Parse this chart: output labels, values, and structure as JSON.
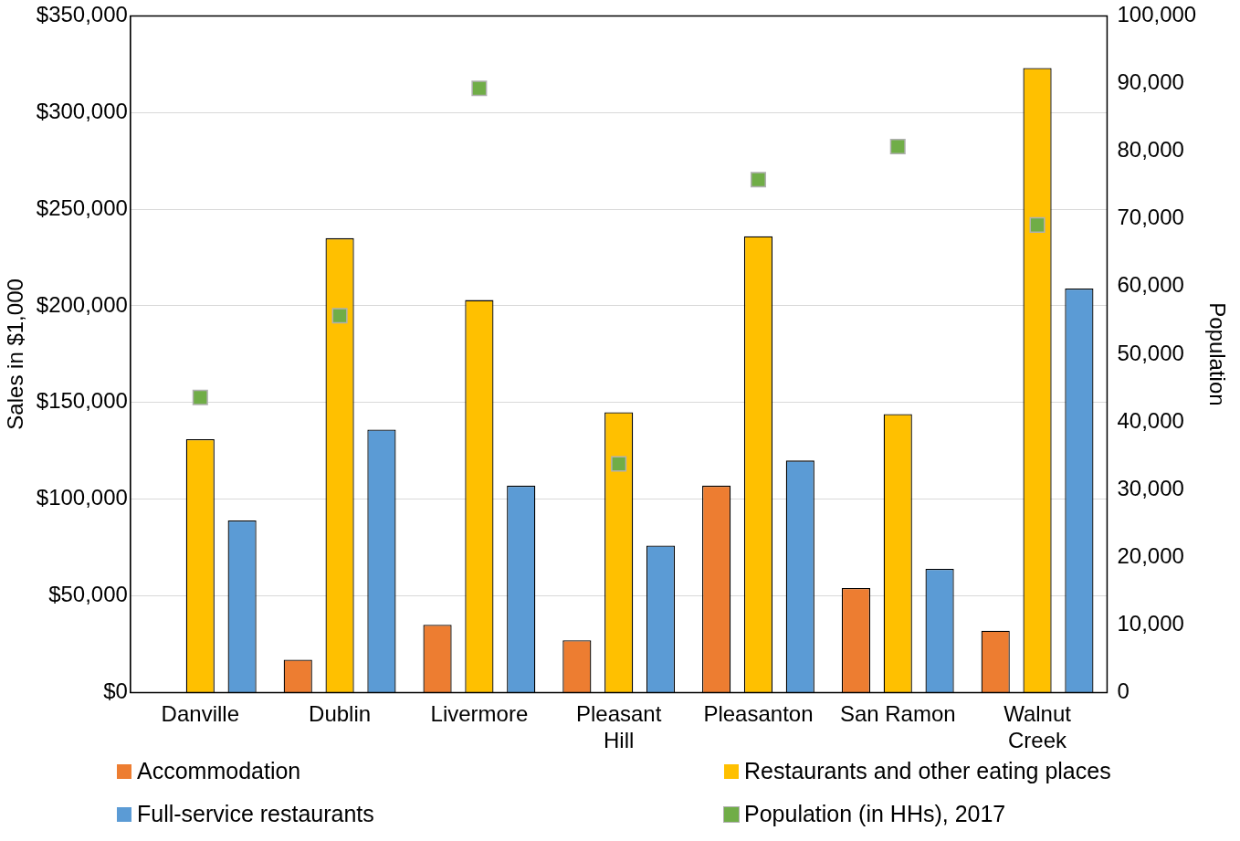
{
  "chart_data": {
    "type": "bar",
    "ylabel": "Sales in $1,000",
    "y2label": "Population",
    "categories": [
      "Danville",
      "Dublin",
      "Livermore",
      "Pleasant Hill",
      "Pleasanton",
      "San Ramon",
      "Walnut Creek"
    ],
    "series": [
      {
        "name": "Accommodation",
        "color": "#ed7d31",
        "values": [
          null,
          17000,
          35000,
          27000,
          107000,
          54000,
          32000
        ]
      },
      {
        "name": "Restaurants and other eating places",
        "color": "#ffc000",
        "values": [
          131000,
          235000,
          203000,
          145000,
          236000,
          144000,
          323000
        ]
      },
      {
        "name": "Full-service restaurants",
        "color": "#5b9bd5",
        "values": [
          89000,
          136000,
          107000,
          76000,
          120000,
          64000,
          209000
        ]
      },
      {
        "name": "Population (in HHs), 2017",
        "type": "scatter",
        "axis": "y2",
        "marker": "square",
        "color": "#70ad47",
        "values": [
          43600,
          55700,
          89300,
          33800,
          75800,
          80700,
          69100
        ]
      }
    ],
    "ylim": [
      0,
      350000
    ],
    "yticks": [
      {
        "value": 0,
        "label": "$0"
      },
      {
        "value": 50000,
        "label": "$50,000"
      },
      {
        "value": 100000,
        "label": "$100,000"
      },
      {
        "value": 150000,
        "label": "$150,000"
      },
      {
        "value": 200000,
        "label": "$200,000"
      },
      {
        "value": 250000,
        "label": "$250,000"
      },
      {
        "value": 300000,
        "label": "$300,000"
      },
      {
        "value": 350000,
        "label": "$350,000"
      }
    ],
    "y2lim": [
      0,
      100000
    ],
    "y2ticks": [
      {
        "value": 0,
        "label": "0"
      },
      {
        "value": 10000,
        "label": "10,000"
      },
      {
        "value": 20000,
        "label": "20,000"
      },
      {
        "value": 30000,
        "label": "30,000"
      },
      {
        "value": 40000,
        "label": "40,000"
      },
      {
        "value": 50000,
        "label": "50,000"
      },
      {
        "value": 60000,
        "label": "60,000"
      },
      {
        "value": 70000,
        "label": "70,000"
      },
      {
        "value": 80000,
        "label": "80,000"
      },
      {
        "value": 90000,
        "label": "90,000"
      },
      {
        "value": 100000,
        "label": "100,000"
      }
    ],
    "grid": "y",
    "legend": "bottom"
  }
}
